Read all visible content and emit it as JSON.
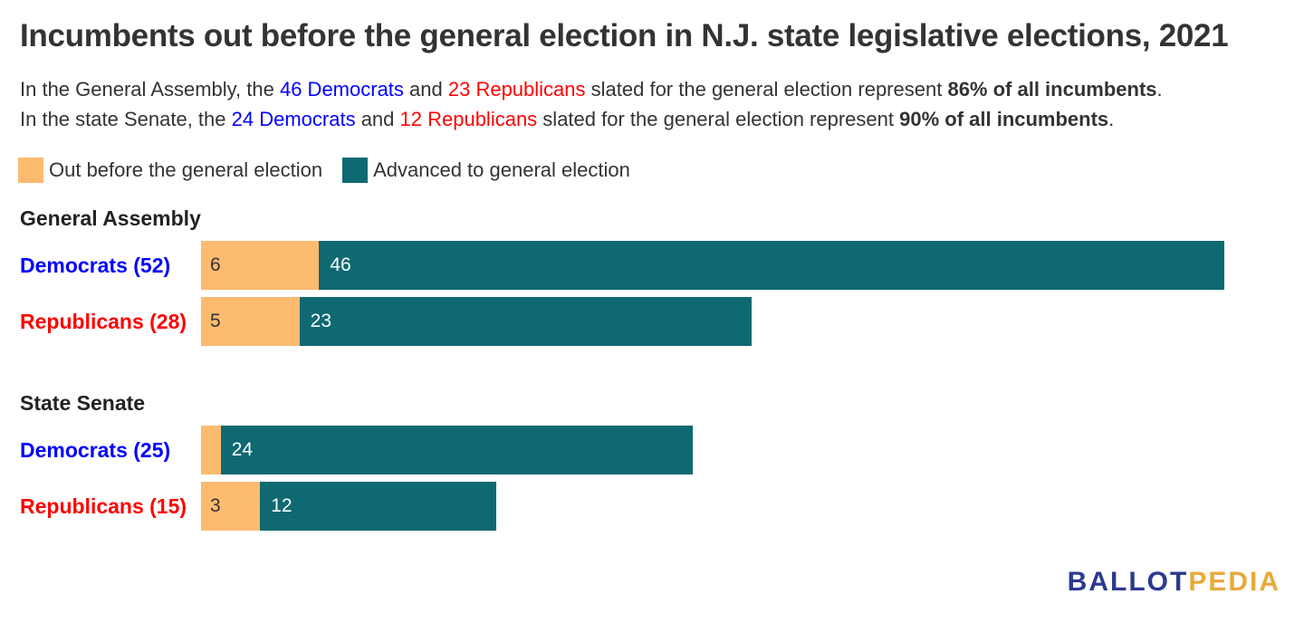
{
  "title": "Incumbents out before the general election in N.J. state legislative elections, 2021",
  "subtitle": {
    "line1": {
      "pre": "In the General Assembly, the ",
      "dem": "46 Democrats",
      "mid": " and ",
      "rep": "23 Republicans",
      "post": " slated for the general election represent ",
      "strong": "86% of all incumbents",
      "end": "."
    },
    "line2": {
      "pre": "In the state Senate, the ",
      "dem": "24 Democrats",
      "mid": " and ",
      "rep": "12 Republicans",
      "post": " slated for the general election represent ",
      "strong": "90% of all incumbents",
      "end": "."
    }
  },
  "colors": {
    "out": "#fdbb6f",
    "advanced": "#0f6973",
    "democrat": "#0000ff",
    "republican": "#ff0000"
  },
  "logo": {
    "part1": "BALLOT",
    "part2": "PEDIA"
  },
  "chart_data": {
    "type": "bar",
    "orientation": "horizontal",
    "stacked": true,
    "legend": [
      "Out before the general election",
      "Advanced to general election"
    ],
    "legend_position": "top-left",
    "grid": false,
    "xlim": [
      0,
      52
    ],
    "groups": [
      {
        "title": "General Assembly",
        "rows": [
          {
            "label": "Democrats (52)",
            "party": "democrat",
            "out": 6,
            "advanced": 46,
            "out_label": "6",
            "advanced_label": "46"
          },
          {
            "label": "Republicans (28)",
            "party": "republican",
            "out": 5,
            "advanced": 23,
            "out_label": "5",
            "advanced_label": "23"
          }
        ]
      },
      {
        "title": "State Senate",
        "rows": [
          {
            "label": "Democrats (25)",
            "party": "democrat",
            "out": 1,
            "advanced": 24,
            "out_label": "",
            "advanced_label": "24"
          },
          {
            "label": "Republicans (15)",
            "party": "republican",
            "out": 3,
            "advanced": 12,
            "out_label": "3",
            "advanced_label": "12"
          }
        ]
      }
    ]
  }
}
